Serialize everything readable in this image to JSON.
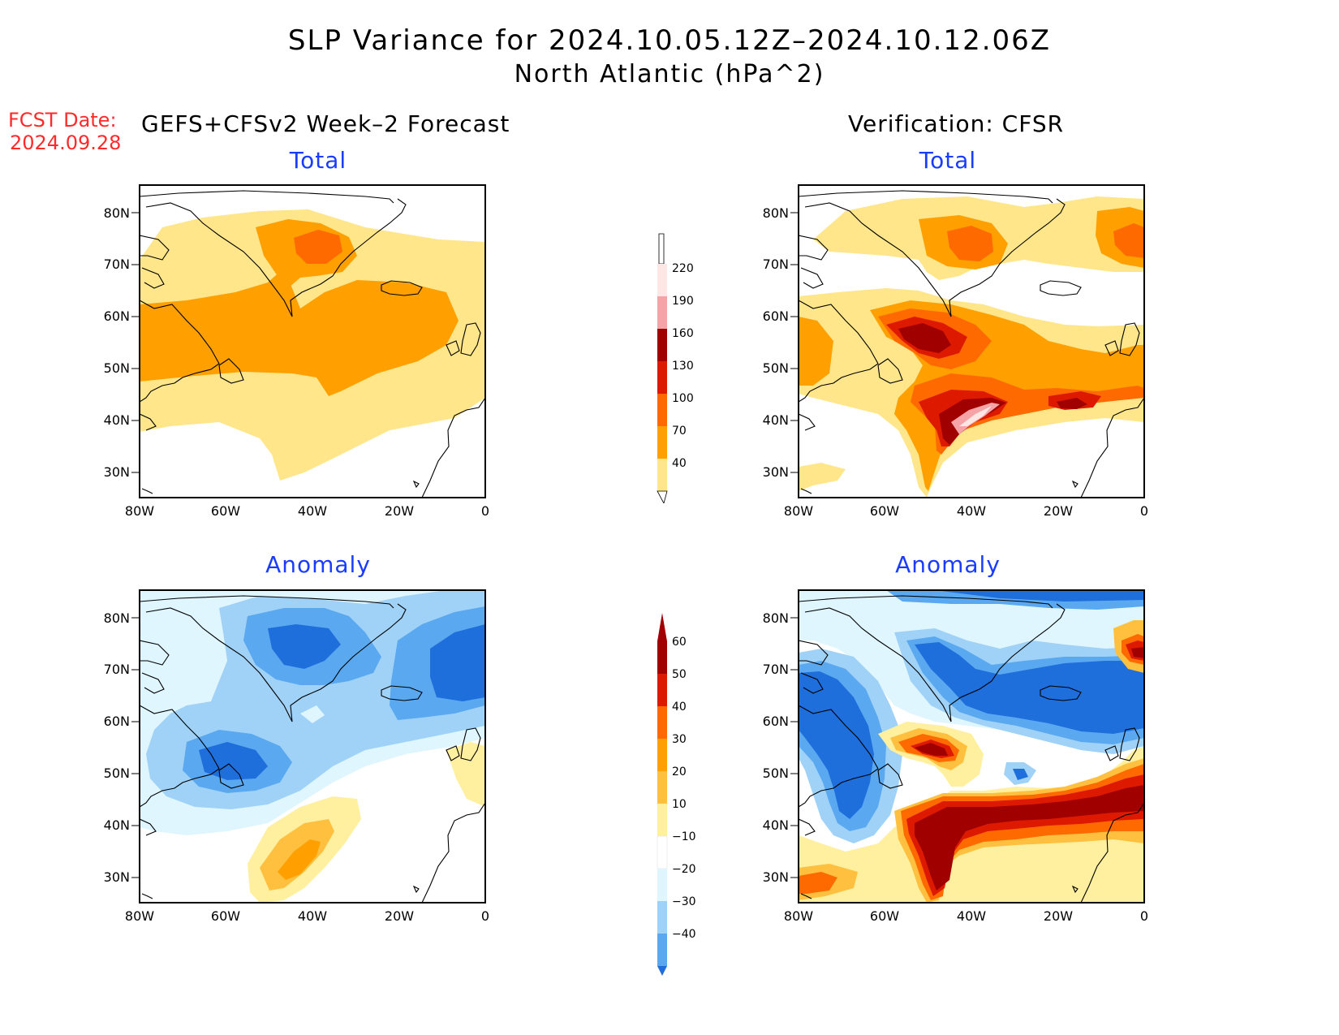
{
  "title": {
    "line1": "SLP Variance for 2024.10.05.12Z–2024.10.12.06Z",
    "line2": "North Atlantic (hPa^2)"
  },
  "fcst": {
    "label": "FCST Date:",
    "date": "2024.09.28"
  },
  "columns": {
    "left": "GEFS+CFSv2 Week–2 Forecast",
    "right": "Verification: CFSR"
  },
  "panels": {
    "fc_total": {
      "title": "Total"
    },
    "fc_anom": {
      "title": "Anomaly"
    },
    "ver_total": {
      "title": "Total"
    },
    "ver_anom": {
      "title": "Anomaly"
    }
  },
  "axes": {
    "lat_labels": [
      "80N",
      "70N",
      "60N",
      "50N",
      "40N",
      "30N"
    ],
    "lon_labels": [
      "80W",
      "60W",
      "40W",
      "20W",
      "0"
    ]
  },
  "legend_total": {
    "levels": [
      "220",
      "190",
      "160",
      "130",
      "100",
      "70",
      "40"
    ],
    "colors": [
      "#fde6e4",
      "#f5a3a6",
      "#a00000",
      "#dd1a00",
      "#ff6a00",
      "#ffa000",
      "#ffe68a"
    ]
  },
  "legend_anom": {
    "levels": [
      "60",
      "50",
      "40",
      "30",
      "20",
      "10",
      "−10",
      "−20",
      "−30",
      "−40"
    ],
    "colors": [
      "#a00000",
      "#dd1a00",
      "#ff6a00",
      "#ffa000",
      "#ffc040",
      "#fff0a0",
      "#ffffff",
      "#dff6ff",
      "#a0d2f8",
      "#5aa8f0",
      "#1e6edc"
    ]
  }
}
